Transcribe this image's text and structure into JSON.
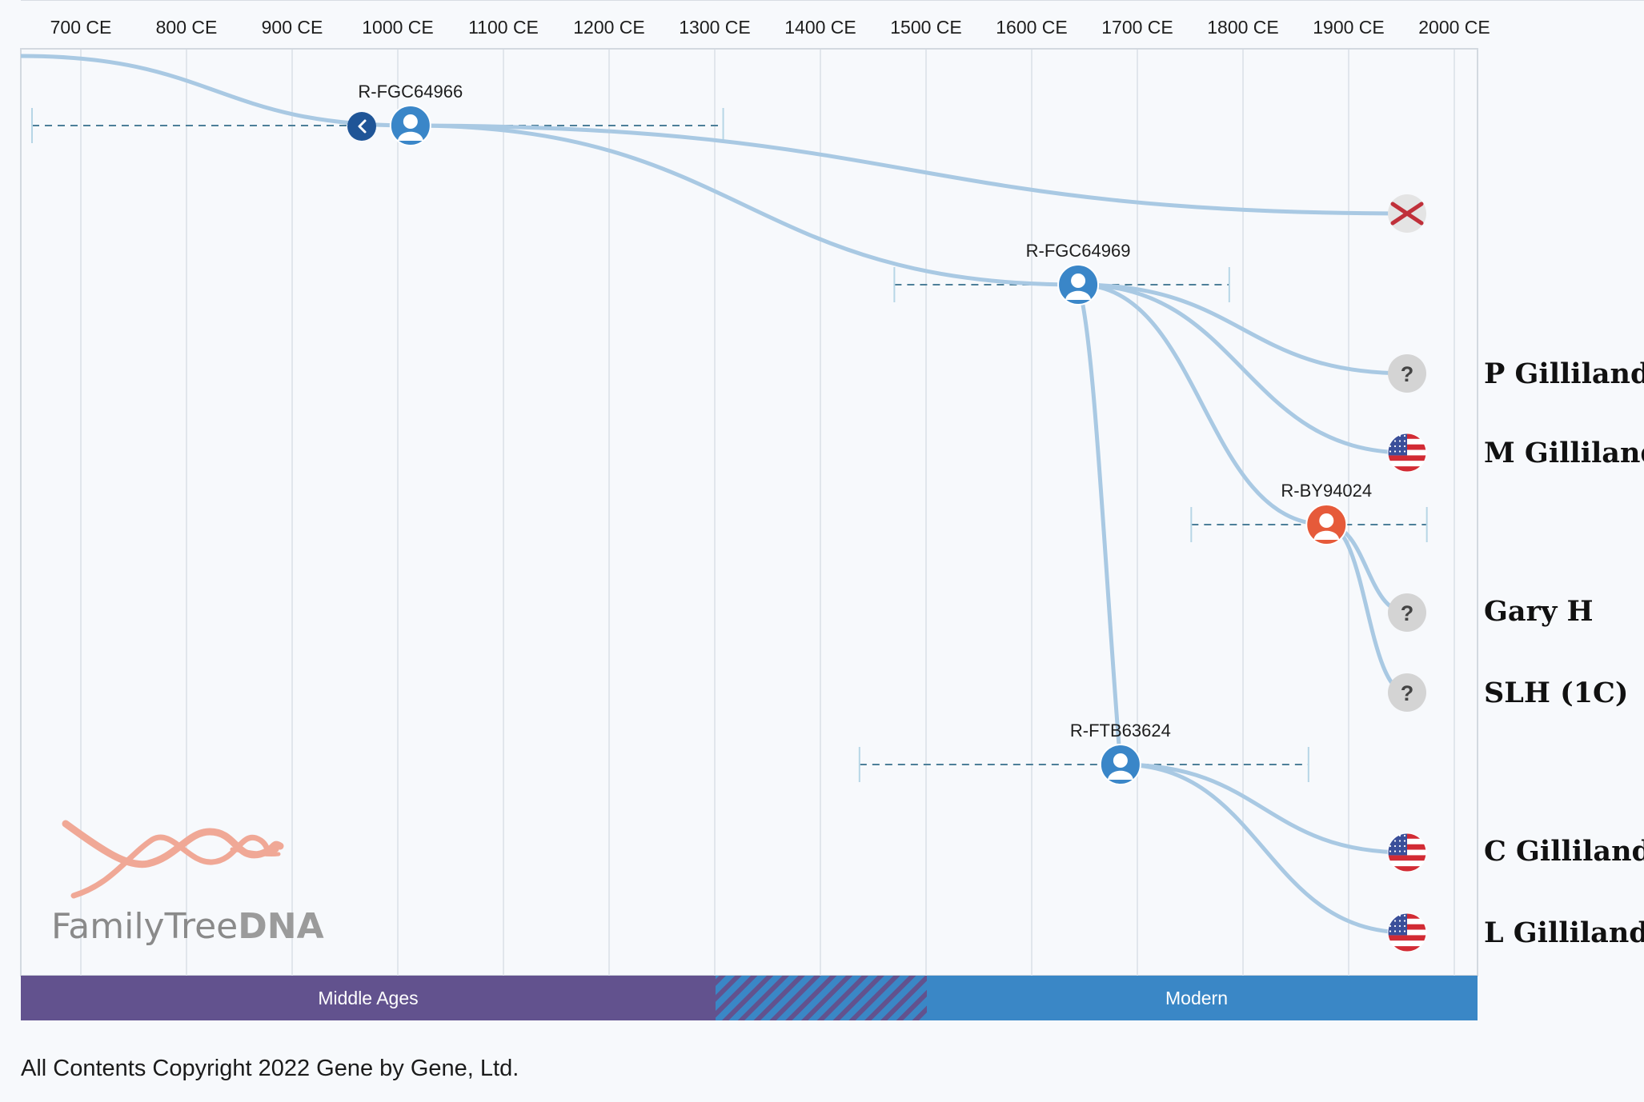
{
  "axis": {
    "ticks": [
      "700 CE",
      "800 CE",
      "900 CE",
      "1000 CE",
      "1100 CE",
      "1200 CE",
      "1300 CE",
      "1400 CE",
      "1500 CE",
      "1600 CE",
      "1700 CE",
      "1800 CE",
      "1900 CE",
      "2000 CE"
    ]
  },
  "nodes": [
    {
      "id": "fgc64966",
      "label": "R-FGC64966",
      "year": 1012,
      "range": [
        651,
        1308
      ],
      "color": "#3a86c8"
    },
    {
      "id": "fgc64969",
      "label": "R-FGC64969",
      "year": 1644,
      "range": [
        1470,
        1787
      ],
      "color": "#3a86c8"
    },
    {
      "id": "by94024",
      "label": "R-BY94024",
      "year": 1879,
      "range": [
        1751,
        1974
      ],
      "color": "#e65a3a"
    },
    {
      "id": "ftb63624",
      "label": "R-FTB63624",
      "year": 1684,
      "range": [
        1437,
        1862
      ],
      "color": "#3a86c8"
    }
  ],
  "testers": [
    {
      "id": "extinct",
      "name": "",
      "marker": "extinct-icon"
    },
    {
      "id": "p-gilliland",
      "name": "P Gilliland",
      "marker": "unknown-country-icon"
    },
    {
      "id": "m-gilliland",
      "name": "M Gilliland",
      "marker": "us-flag-icon"
    },
    {
      "id": "gary-h",
      "name": "Gary H",
      "marker": "unknown-country-icon"
    },
    {
      "id": "slh",
      "name": "SLH (1C)",
      "marker": "unknown-country-icon"
    },
    {
      "id": "c-gilliland",
      "name": "C Gilliland",
      "marker": "us-flag-icon"
    },
    {
      "id": "l-gilliland",
      "name": "L Gilliland",
      "marker": "us-flag-icon"
    }
  ],
  "unknown_glyph": "?",
  "eras": [
    {
      "name": "Middle Ages",
      "color": "#62528e"
    },
    {
      "name": "",
      "color": "hatched"
    },
    {
      "name": "Modern",
      "color": "#3a87c6"
    }
  ],
  "logo": {
    "family": "FamilyTree",
    "dna": "DNA"
  },
  "copyright": "All Contents Copyright 2022 Gene by Gene, Ltd.",
  "colors": {
    "branch": "#a9c9e3",
    "node_blue": "#3a86c8",
    "node_orange": "#e65a3a",
    "back_button": "#1f5597",
    "extinct_cross": "#c0303a",
    "logo_helix": "#f0a896"
  }
}
